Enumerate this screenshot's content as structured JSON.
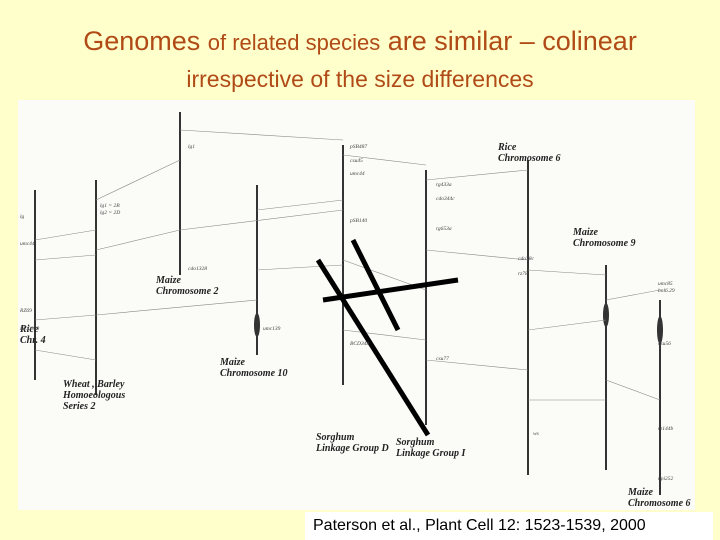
{
  "header": {
    "title_parts": [
      "Genomes",
      "of related species",
      "are similar – colinear"
    ],
    "subtitle": "irrespective of the size differences"
  },
  "figure": {
    "labels": [
      [
        "Rice",
        "Chr. 4"
      ],
      [
        "Wheat , Barley",
        "Homoeologous",
        "Series 2"
      ],
      [
        "Maize",
        "Chromosome 2"
      ],
      [
        "Maize",
        "Chromosome 10"
      ],
      [
        "Sorghum",
        "Linkage Group D"
      ],
      [
        "Sorghum",
        "Linkage Group I"
      ],
      [
        "Rice",
        "Chromosome 6"
      ],
      [
        "Maize",
        "Chromosome 9"
      ],
      [
        "Maize",
        "Chromosome 6"
      ]
    ],
    "markers": [
      "lg",
      "lg1 = 2B",
      "lg2 = 2D",
      "lg1",
      "umc44",
      "RZ69",
      "BCD348",
      "cdo1328",
      "umc139",
      "pSB487",
      "csu45",
      "umc44",
      "pSB140",
      "BCD348",
      "rg433a",
      "rg653a",
      "cdo344c",
      "csu77",
      "ws",
      "cdo78c",
      "rz78",
      "umc85",
      "bnl6.29",
      "csu56",
      "rz144b",
      "npi252"
    ]
  },
  "citation": "Paterson et al., Plant Cell 12: 1523-1539, 2000"
}
